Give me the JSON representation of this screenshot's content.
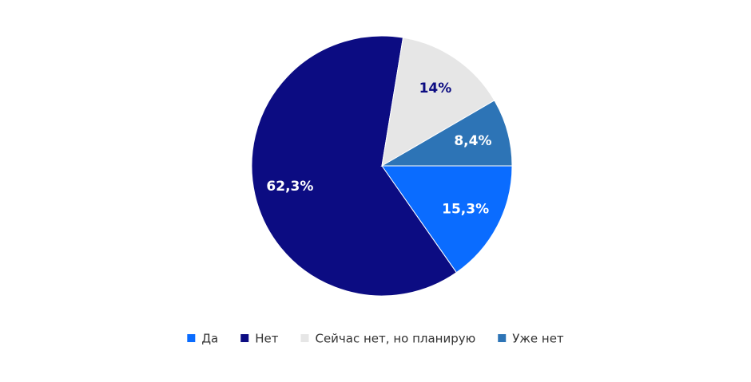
{
  "chart_data": {
    "type": "pie",
    "categories": [
      "Да",
      "Нет",
      "Сейчас нет, но планирую",
      "Уже нет"
    ],
    "values": [
      15.3,
      62.3,
      14,
      8.4
    ],
    "value_labels": [
      "15,3%",
      "62,3%",
      "14%",
      "8,4%"
    ],
    "colors": [
      "#0a6cff",
      "#0c0c82",
      "#e6e6e6",
      "#2d74b6"
    ],
    "label_colors": [
      "#ffffff",
      "#ffffff",
      "#0c0c82",
      "#ffffff"
    ],
    "start_direction": "3 o'clock, clockwise",
    "legend_position": "bottom"
  }
}
